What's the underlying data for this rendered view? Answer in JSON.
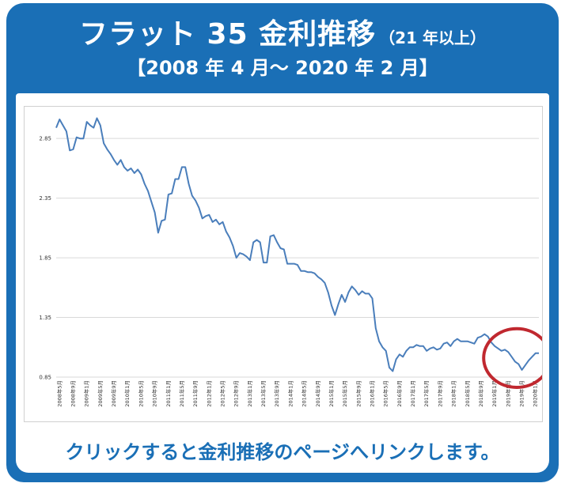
{
  "header": {
    "title_main": "フラット 35 金利推移",
    "title_sub": "（21 年以上）",
    "period": "【2008 年 4 月～ 2020 年 2 月】"
  },
  "link_text": "クリックすると金利推移のページへリンクします。",
  "colors": {
    "banner": "#1a6fb6",
    "line": "#4a7ebb",
    "highlight_circle": "#c0282f"
  },
  "chart_data": {
    "type": "line",
    "title": "",
    "xlabel": "",
    "ylabel": "",
    "ylim": [
      0.85,
      3.05
    ],
    "yticks": [
      0.85,
      1.35,
      1.85,
      2.35,
      2.85
    ],
    "grid": true,
    "x_tick_labels": [
      "2008年5月",
      "2008年9月",
      "2009年1月",
      "2009年5月",
      "2009年9月",
      "2010年1月",
      "2010年5月",
      "2010年9月",
      "2011年1月",
      "2011年5月",
      "2011年9月",
      "2012年1月",
      "2012年5月",
      "2012年9月",
      "2013年1月",
      "2013年5月",
      "2013年9月",
      "2014年1月",
      "2014年5月",
      "2014年9月",
      "2015年1月",
      "2015年5月",
      "2015年9月",
      "2016年1月",
      "2016年5月",
      "2016年9月",
      "2017年1月",
      "2017年5月",
      "2017年9月",
      "2018年1月",
      "2018年5月",
      "2018年9月",
      "2019年1月",
      "2019年5月",
      "2019年9月",
      "2020年1月"
    ],
    "highlight": "2019年1月–2020年2月",
    "series": [
      {
        "values": [
          2.94,
          3.01,
          2.96,
          2.91,
          2.75,
          2.76,
          2.86,
          2.85,
          2.85,
          2.99,
          2.96,
          2.94,
          3.02,
          2.96,
          2.81,
          2.76,
          2.72,
          2.67,
          2.63,
          2.67,
          2.61,
          2.58,
          2.6,
          2.56,
          2.59,
          2.55,
          2.47,
          2.41,
          2.32,
          2.23,
          2.06,
          2.16,
          2.17,
          2.38,
          2.39,
          2.51,
          2.51,
          2.61,
          2.61,
          2.47,
          2.37,
          2.33,
          2.27,
          2.18,
          2.2,
          2.21,
          2.15,
          2.17,
          2.13,
          2.15,
          2.07,
          2.02,
          1.95,
          1.85,
          1.89,
          1.88,
          1.86,
          1.83,
          1.98,
          2.0,
          1.98,
          1.81,
          1.81,
          2.03,
          2.04,
          1.98,
          1.93,
          1.92,
          1.8,
          1.8,
          1.8,
          1.79,
          1.74,
          1.74,
          1.73,
          1.73,
          1.72,
          1.69,
          1.67,
          1.64,
          1.56,
          1.45,
          1.37,
          1.46,
          1.54,
          1.48,
          1.56,
          1.61,
          1.58,
          1.54,
          1.57,
          1.55,
          1.55,
          1.51,
          1.26,
          1.15,
          1.1,
          1.07,
          0.93,
          0.9,
          1.0,
          1.04,
          1.02,
          1.07,
          1.1,
          1.1,
          1.12,
          1.11,
          1.11,
          1.07,
          1.09,
          1.1,
          1.08,
          1.09,
          1.13,
          1.14,
          1.11,
          1.15,
          1.17,
          1.15,
          1.15,
          1.15,
          1.14,
          1.13,
          1.18,
          1.19,
          1.21,
          1.19,
          1.14,
          1.11,
          1.09,
          1.07,
          1.08,
          1.06,
          1.02,
          0.98,
          0.96,
          0.91,
          0.95,
          0.99,
          1.02,
          1.05,
          1.05
        ]
      }
    ]
  }
}
